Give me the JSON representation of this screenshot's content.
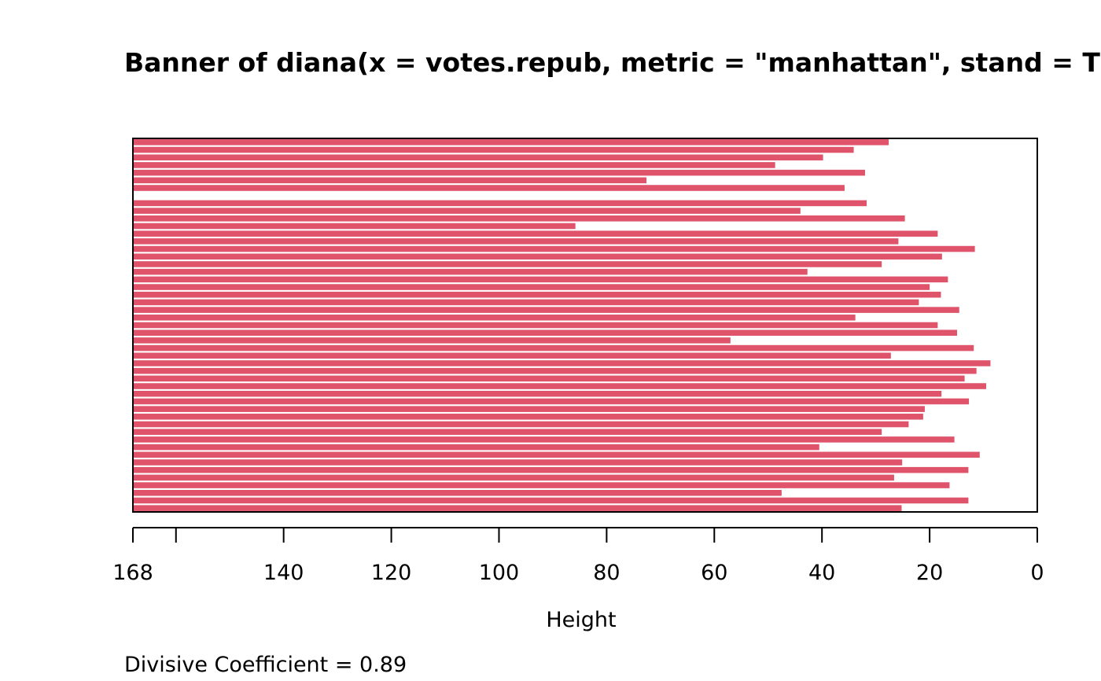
{
  "chart_data": {
    "type": "bar",
    "orientation": "horizontal",
    "title": "Banner of  diana(x = votes.repub, metric = \"manhattan\", stand = T",
    "xlabel": "Height",
    "ylabel": "",
    "xlim": [
      168,
      0
    ],
    "x_ticks": [
      168,
      160,
      140,
      120,
      100,
      80,
      60,
      40,
      20,
      0
    ],
    "x_tick_labels": [
      "168",
      "",
      "140",
      "120",
      "100",
      "80",
      "60",
      "40",
      "20",
      "0"
    ],
    "bar_color": "#DF536B",
    "footer": "Divisive Coefficient =  0.89",
    "values": [
      27.6,
      34.1,
      39.8,
      48.7,
      32.0,
      72.6,
      35.8,
      168,
      31.7,
      44.0,
      24.6,
      85.8,
      18.5,
      25.8,
      11.6,
      17.7,
      28.9,
      42.7,
      16.6,
      20.0,
      17.9,
      22.0,
      14.5,
      33.8,
      18.5,
      14.9,
      57.0,
      11.8,
      27.2,
      8.7,
      11.3,
      13.5,
      9.5,
      17.8,
      12.7,
      20.9,
      21.2,
      23.9,
      28.9,
      15.4,
      40.5,
      10.7,
      25.1,
      12.8,
      26.6,
      16.3,
      47.5,
      12.8,
      25.2
    ]
  }
}
